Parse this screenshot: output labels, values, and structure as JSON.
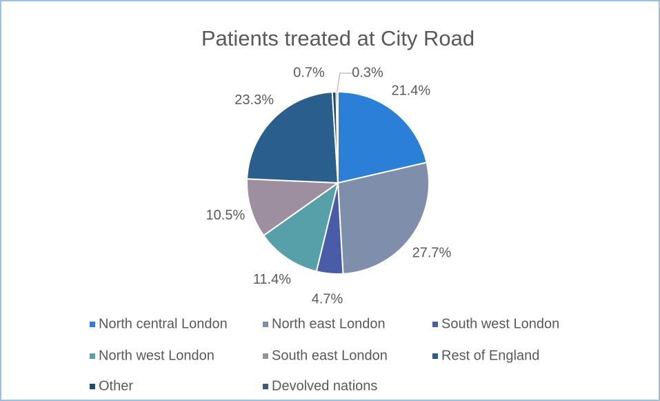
{
  "chart_data": {
    "type": "pie",
    "title": "Patients treated at City Road",
    "categories": [
      "North central London",
      "North east London",
      "South west London",
      "North west London",
      "South east London",
      "Rest of England",
      "Other",
      "Devolved nations"
    ],
    "values": [
      21.4,
      27.7,
      4.7,
      11.4,
      10.5,
      23.3,
      0.7,
      0.3
    ],
    "value_labels": [
      "21.4%",
      "27.7%",
      "4.7%",
      "11.4%",
      "10.5%",
      "23.3%",
      "0.7%",
      "0.3%"
    ],
    "colors": [
      "#2b7fd6",
      "#7f8fab",
      "#4a5ca8",
      "#57a0a9",
      "#9d8f9f",
      "#2a5e8c",
      "#1f4a73",
      "#3b5a80"
    ],
    "legend": "bottom"
  }
}
